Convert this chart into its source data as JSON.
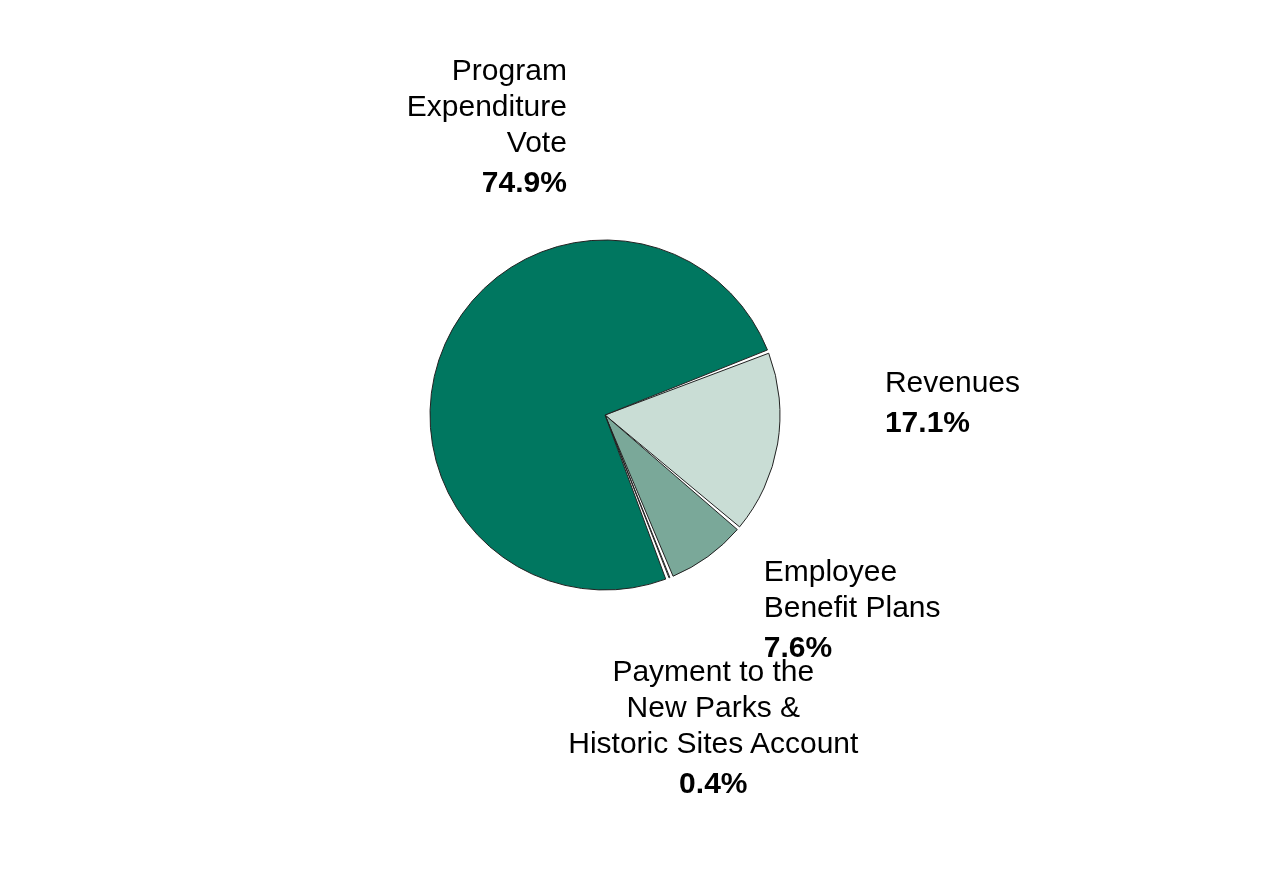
{
  "chart_data": {
    "type": "pie",
    "categories": [
      "Revenues",
      "Employee Benefit Plans",
      "Payment to the New Parks & Historic Sites Account",
      "Program Expenditure Vote"
    ],
    "values": [
      17.1,
      7.6,
      0.4,
      74.9
    ],
    "colors": [
      "#c9ddd5",
      "#7aa899",
      "#c9ddd5",
      "#007760"
    ],
    "value_labels": [
      "17.1%",
      "7.6%",
      "0.4%",
      "74.9%"
    ],
    "legend": false
  }
}
